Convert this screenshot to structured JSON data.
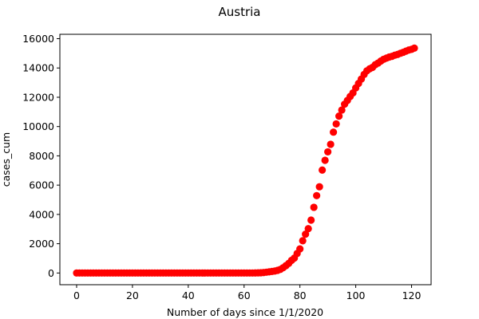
{
  "chart_data": {
    "type": "scatter",
    "title": "Austria",
    "xlabel": "Number of days since 1/1/2020",
    "ylabel": "cases_cum",
    "xlim": [
      -6,
      127
    ],
    "ylim": [
      -800,
      16300
    ],
    "xticks": [
      0,
      20,
      40,
      60,
      80,
      100,
      120
    ],
    "yticks": [
      0,
      2000,
      4000,
      6000,
      8000,
      10000,
      12000,
      14000,
      16000
    ],
    "grid": false,
    "legend": "none",
    "marker_color": "#ff0000",
    "series": [
      {
        "x": [
          0,
          1,
          2,
          3,
          4,
          5,
          6,
          7,
          8,
          9,
          10,
          11,
          12,
          13,
          14,
          15,
          16,
          17,
          18,
          19,
          20,
          21,
          22,
          23,
          24,
          25,
          26,
          27,
          28,
          29,
          30,
          31,
          32,
          33,
          34,
          35,
          36,
          37,
          38,
          39,
          40,
          41,
          42,
          43,
          44,
          45,
          46,
          47,
          48,
          49,
          50,
          51,
          52,
          53,
          54,
          55,
          56,
          57,
          58,
          59,
          60,
          61,
          62,
          63,
          64,
          65,
          66,
          67,
          68,
          69,
          70,
          71,
          72,
          73,
          74,
          75,
          76,
          77,
          78,
          79,
          80,
          81,
          82,
          83,
          84,
          85,
          86,
          87,
          88,
          89,
          90,
          91,
          92,
          93,
          94,
          95,
          96,
          97,
          98,
          99,
          100,
          101,
          102,
          103,
          104,
          105,
          106,
          107,
          108,
          109,
          110,
          111,
          112,
          113,
          114,
          115,
          116,
          117,
          118,
          119,
          120,
          121
        ],
        "y": [
          0,
          0,
          0,
          0,
          0,
          0,
          0,
          0,
          0,
          0,
          0,
          0,
          0,
          0,
          0,
          0,
          0,
          0,
          0,
          0,
          0,
          0,
          0,
          0,
          0,
          0,
          0,
          0,
          0,
          0,
          0,
          0,
          0,
          0,
          0,
          0,
          0,
          0,
          0,
          0,
          0,
          0,
          0,
          0,
          0,
          0,
          0,
          0,
          0,
          0,
          0,
          0,
          0,
          0,
          0,
          0,
          0,
          0,
          0,
          0,
          0,
          0,
          0,
          0,
          5,
          10,
          18,
          30,
          55,
          80,
          104,
          131,
          182,
          246,
          361,
          504,
          655,
          860,
          1018,
          1332,
          1646,
          2203,
          2649,
          3024,
          3611,
          4486,
          5283,
          5888,
          7029,
          7697,
          8271,
          8788,
          9618,
          10180,
          10711,
          11129,
          11525,
          11781,
          12051,
          12297,
          12639,
          12942,
          13244,
          13555,
          13806,
          13945,
          14041,
          14226,
          14336,
          14476,
          14595,
          14671,
          14749,
          14795,
          14873,
          14925,
          15002,
          15071,
          15148,
          15225,
          15274,
          15357
        ]
      }
    ]
  }
}
